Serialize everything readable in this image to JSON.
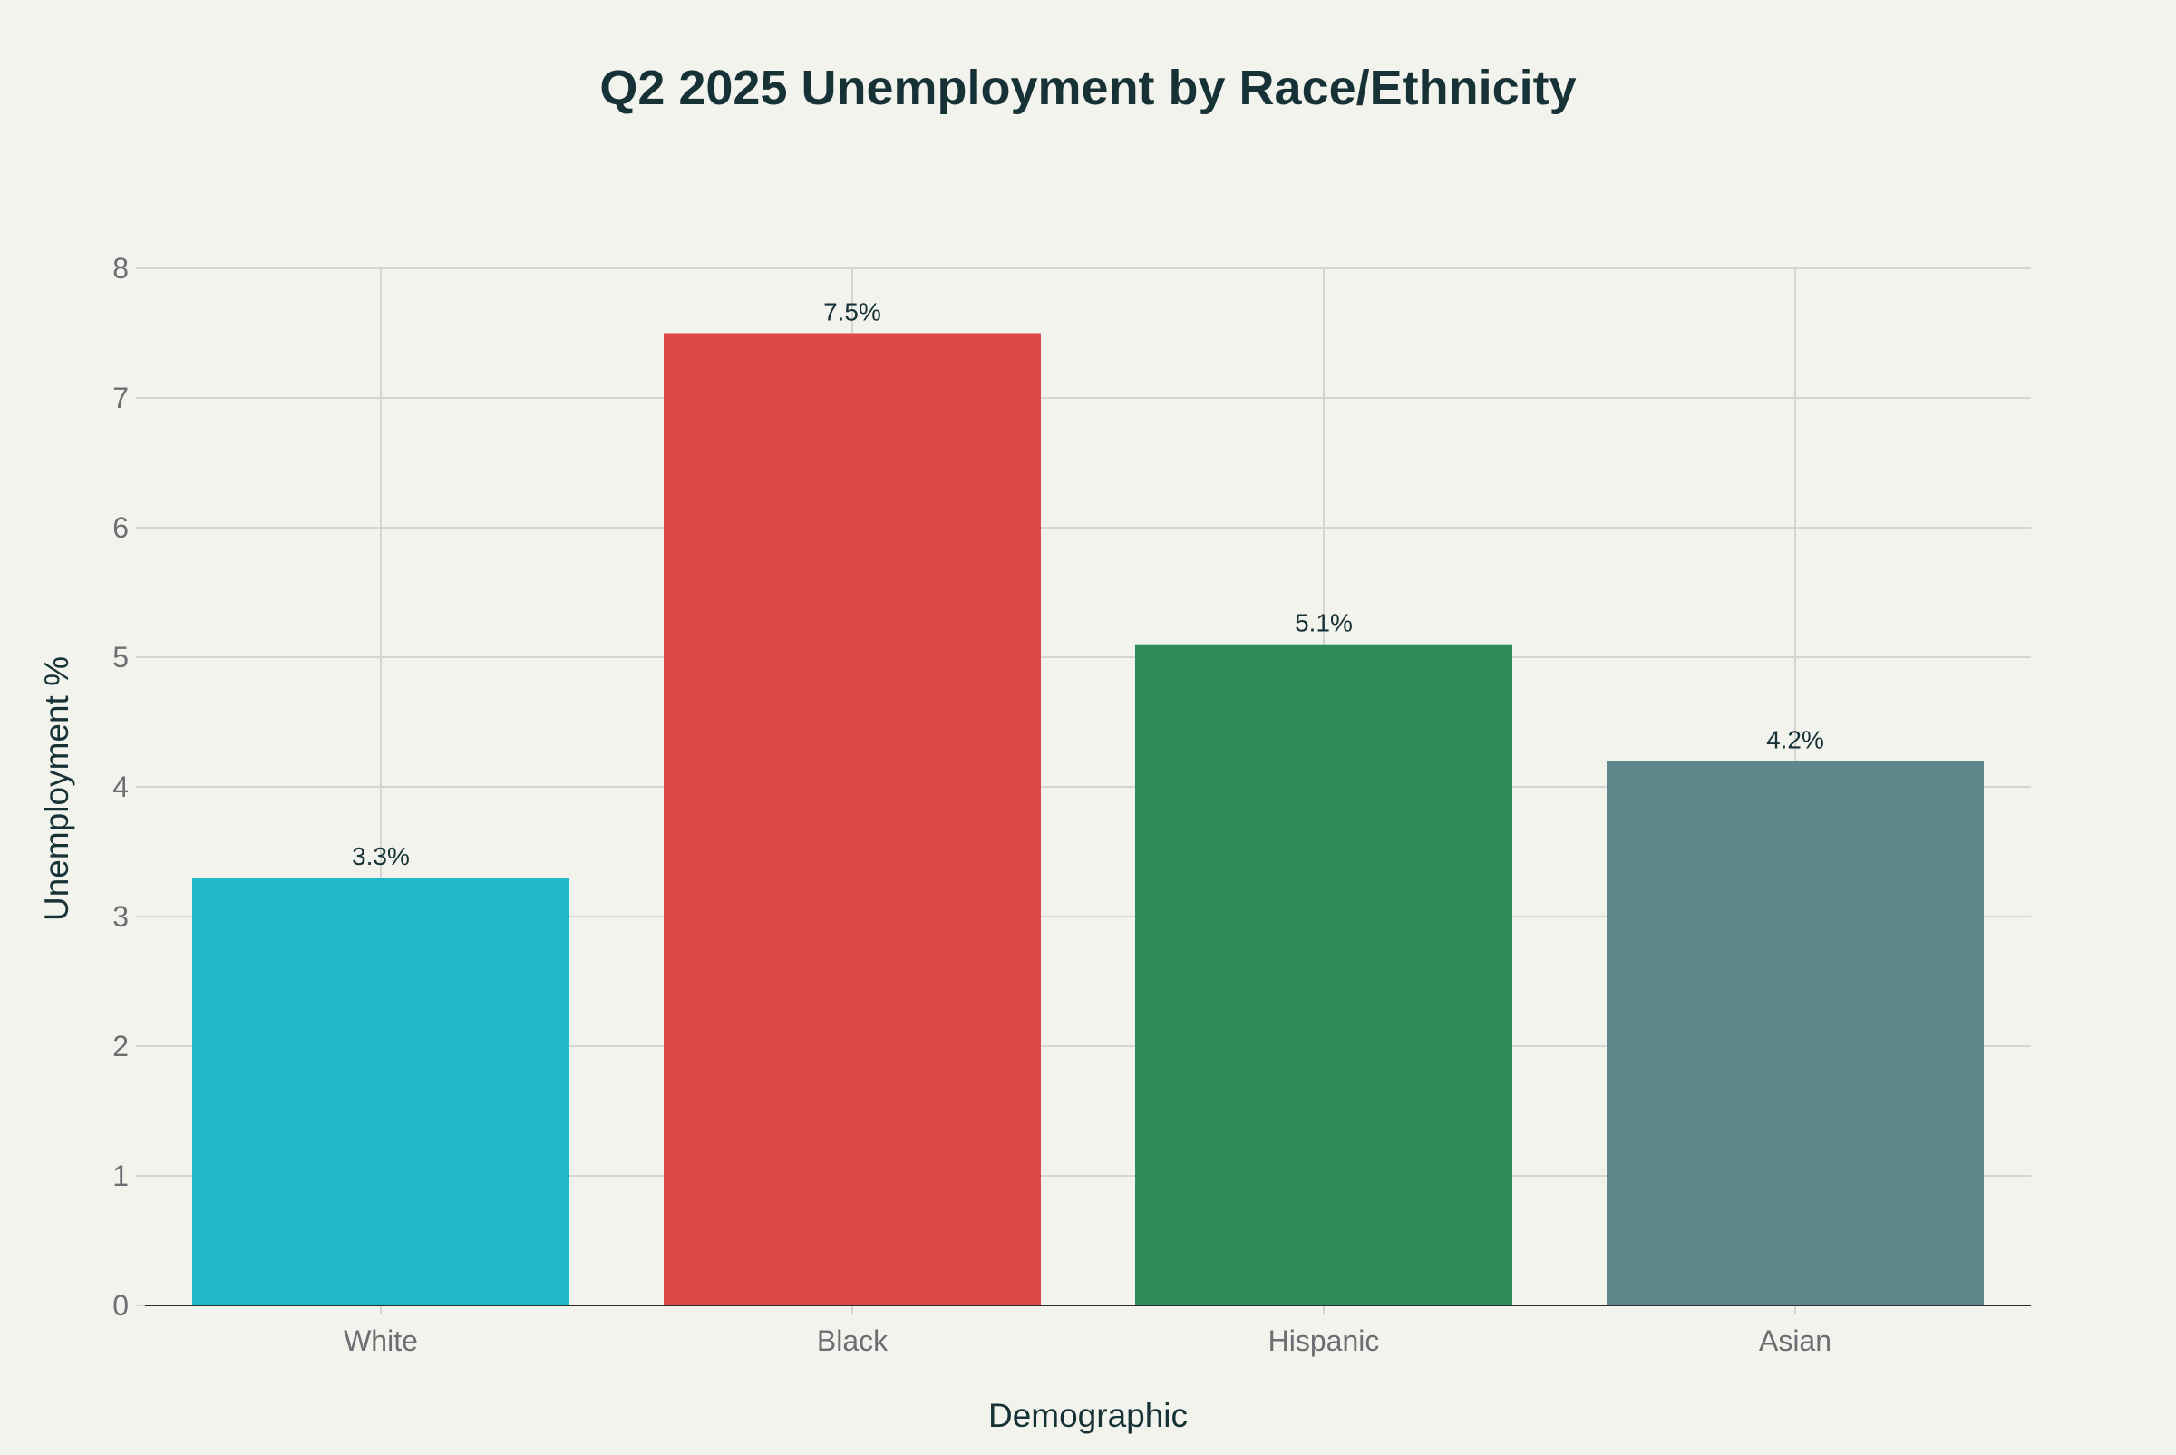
{
  "chart_data": {
    "type": "bar",
    "title": "Q2 2025 Unemployment by Race/Ethnicity",
    "xlabel": "Demographic",
    "ylabel": "Unemployment %",
    "categories": [
      "White",
      "Black",
      "Hispanic",
      "Asian"
    ],
    "values": [
      3.3,
      7.5,
      5.1,
      4.2
    ],
    "data_labels": [
      "3.3%",
      "7.5%",
      "5.1%",
      "4.2%"
    ],
    "colors": [
      "#21b8cc",
      "#dc4747",
      "#2f8b57",
      "#5f878c"
    ],
    "ylim": [
      0,
      8
    ],
    "yticks": [
      0,
      1,
      2,
      3,
      4,
      5,
      6,
      7,
      8
    ],
    "grid": true,
    "legend": false
  }
}
